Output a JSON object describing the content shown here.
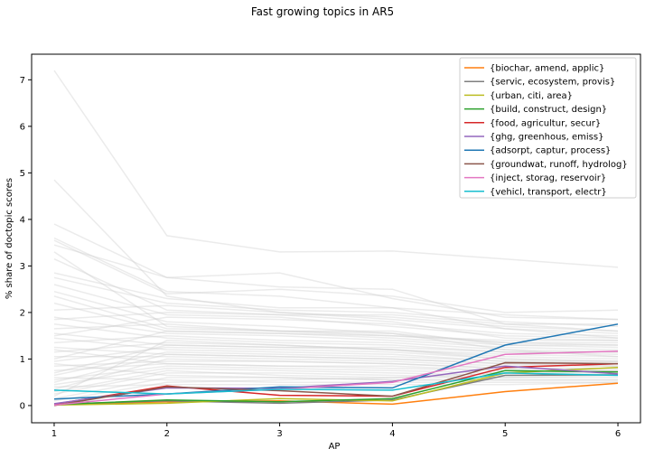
{
  "chart_data": {
    "type": "line",
    "title": "Fast growing topics in AR5",
    "xlabel": "AP",
    "ylabel": "% share of doctopic scores",
    "x": [
      1,
      2,
      3,
      4,
      5,
      6
    ],
    "xlim": [
      0.8,
      6.2
    ],
    "ylim": [
      -0.37,
      7.55
    ],
    "xticks": [
      "1",
      "2",
      "3",
      "4",
      "5",
      "6"
    ],
    "yticks": [
      0,
      1,
      2,
      3,
      4,
      5,
      6,
      7
    ],
    "grid": false,
    "legend_position": "top-right",
    "background_color": "#cccccc",
    "background_series": [
      [
        7.2,
        3.65,
        3.3,
        3.32,
        3.15,
        2.97
      ],
      [
        4.85,
        2.35,
        2.0,
        1.85,
        1.65,
        1.55
      ],
      [
        3.9,
        2.75,
        2.85,
        2.3,
        1.9,
        1.85
      ],
      [
        3.6,
        2.45,
        2.35,
        2.1,
        1.95,
        1.85
      ],
      [
        3.55,
        2.4,
        2.5,
        2.35,
        2.0,
        2.05
      ],
      [
        3.45,
        2.75,
        2.55,
        2.5,
        1.75,
        1.75
      ],
      [
        3.3,
        1.7,
        1.6,
        1.5,
        1.35,
        1.3
      ],
      [
        3.15,
        2.05,
        1.95,
        1.95,
        1.75,
        1.6
      ],
      [
        2.85,
        2.3,
        2.1,
        2.1,
        1.65,
        1.45
      ],
      [
        2.6,
        1.95,
        1.9,
        1.7,
        1.5,
        1.45
      ],
      [
        2.45,
        1.8,
        1.7,
        1.55,
        1.2,
        1.05
      ],
      [
        2.2,
        1.6,
        1.55,
        1.45,
        1.3,
        1.3
      ],
      [
        2.05,
        2.15,
        2.0,
        1.9,
        1.7,
        1.6
      ],
      [
        1.9,
        1.55,
        1.5,
        1.4,
        1.25,
        1.2
      ],
      [
        1.75,
        1.45,
        1.35,
        1.3,
        1.15,
        1.15
      ],
      [
        1.65,
        1.75,
        1.6,
        1.55,
        1.35,
        1.35
      ],
      [
        1.55,
        1.3,
        1.25,
        1.2,
        1.05,
        1.0
      ],
      [
        1.45,
        1.2,
        1.15,
        1.1,
        0.95,
        0.95
      ],
      [
        1.35,
        1.5,
        1.4,
        1.35,
        1.2,
        1.15
      ],
      [
        1.25,
        1.1,
        1.05,
        1.0,
        0.9,
        0.9
      ],
      [
        1.15,
        1.35,
        1.3,
        1.2,
        1.1,
        1.05
      ],
      [
        1.05,
        1.05,
        1.0,
        0.95,
        0.85,
        0.85
      ],
      [
        0.95,
        1.25,
        1.2,
        1.15,
        1.0,
        0.95
      ],
      [
        0.85,
        0.95,
        0.95,
        0.9,
        0.8,
        0.8
      ],
      [
        0.75,
        0.9,
        0.85,
        0.8,
        0.75,
        0.75
      ],
      [
        0.65,
        1.15,
        1.1,
        1.05,
        0.95,
        0.9
      ],
      [
        0.55,
        0.85,
        0.8,
        0.75,
        0.7,
        0.7
      ],
      [
        0.45,
        0.8,
        0.75,
        0.7,
        0.65,
        0.65
      ],
      [
        0.35,
        1.0,
        0.95,
        0.9,
        0.8,
        0.8
      ],
      [
        0.25,
        0.7,
        0.7,
        0.65,
        0.6,
        0.6
      ],
      [
        0.2,
        1.4,
        1.3,
        1.2,
        1.0,
        0.95
      ],
      [
        0.15,
        0.6,
        0.6,
        0.55,
        0.55,
        0.55
      ],
      [
        0.1,
        0.5,
        0.55,
        0.6,
        0.6,
        0.65
      ],
      [
        2.35,
        1.65,
        1.6,
        1.6,
        1.3,
        1.25
      ],
      [
        1.85,
        2.0,
        1.95,
        1.8,
        1.45,
        1.4
      ],
      [
        1.5,
        1.9,
        1.85,
        1.75,
        1.55,
        1.5
      ],
      [
        1.0,
        1.6,
        1.55,
        1.5,
        1.4,
        1.4
      ],
      [
        0.7,
        1.3,
        1.25,
        1.25,
        1.15,
        1.1
      ],
      [
        0.5,
        1.1,
        1.05,
        1.0,
        0.9,
        0.85
      ],
      [
        0.3,
        0.75,
        0.65,
        0.6,
        0.7,
        0.75
      ],
      [
        2.75,
        2.2,
        2.05,
        2.0,
        1.8,
        1.7
      ],
      [
        1.2,
        0.9,
        0.85,
        0.85,
        0.75,
        0.75
      ],
      [
        0.9,
        0.65,
        0.6,
        0.55,
        0.55,
        0.55
      ],
      [
        0.6,
        0.55,
        0.5,
        0.5,
        0.5,
        0.5
      ],
      [
        0.4,
        0.45,
        0.45,
        0.45,
        0.45,
        0.5
      ]
    ],
    "series": [
      {
        "name": "{biochar, amend, applic}",
        "color": "#ff7f0e",
        "values": [
          0.02,
          0.08,
          0.1,
          0.03,
          0.3,
          0.48
        ]
      },
      {
        "name": "{servic, ecosystem, provis}",
        "color": "#7f7f7f",
        "values": [
          0.03,
          0.1,
          0.05,
          0.12,
          0.65,
          0.66
        ]
      },
      {
        "name": "{urban, citi, area}",
        "color": "#bcbd22",
        "values": [
          0.01,
          0.05,
          0.15,
          0.1,
          0.7,
          0.82
        ]
      },
      {
        "name": "{build, construct, design}",
        "color": "#2ca02c",
        "values": [
          0.02,
          0.12,
          0.08,
          0.15,
          0.75,
          0.72
        ]
      },
      {
        "name": "{food, agricultur, secur}",
        "color": "#d62728",
        "values": [
          0.03,
          0.42,
          0.22,
          0.2,
          0.82,
          0.9
        ]
      },
      {
        "name": "{ghg, greenhous, emiss}",
        "color": "#9467bd",
        "values": [
          0.04,
          0.38,
          0.37,
          0.52,
          0.85,
          0.68
        ]
      },
      {
        "name": "{adsorpt, captur, process}",
        "color": "#1f77b4",
        "values": [
          0.14,
          0.25,
          0.4,
          0.38,
          1.3,
          1.75
        ]
      },
      {
        "name": "{groundwat, runoff, hydrolog}",
        "color": "#8c564b",
        "values": [
          0.0,
          0.4,
          0.32,
          0.2,
          0.92,
          0.9
        ]
      },
      {
        "name": "{inject, storag, reservoir}",
        "color": "#e377c2",
        "values": [
          0.01,
          0.25,
          0.35,
          0.5,
          1.1,
          1.17
        ]
      },
      {
        "name": "{vehicl, transport, electr}",
        "color": "#17becf",
        "values": [
          0.33,
          0.25,
          0.35,
          0.33,
          0.7,
          0.65
        ]
      }
    ]
  }
}
